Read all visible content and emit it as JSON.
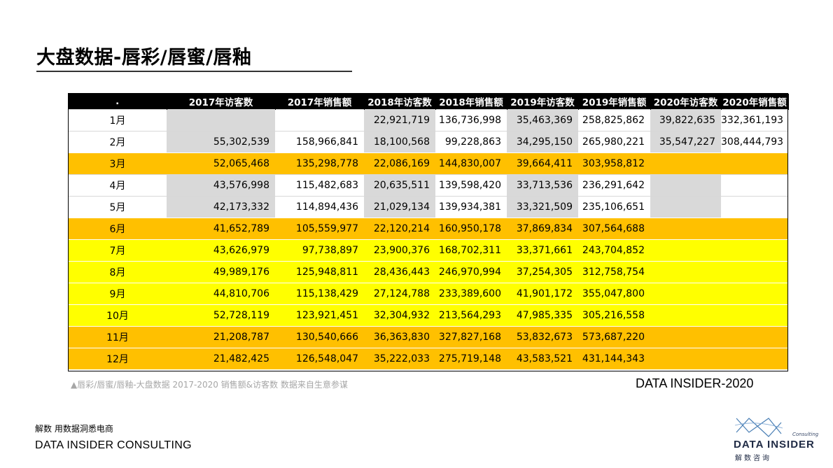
{
  "title": "大盘数据-唇彩/唇蜜/唇釉",
  "table": {
    "headers": [
      ".",
      "2017年访客数",
      "2017年销售额",
      "2018年访客数",
      "2018年销售额",
      "2019年访客数",
      "2019年销售额",
      "2020年访客数",
      "2020年销售额"
    ],
    "rows": [
      {
        "style": "white",
        "cells": [
          "1月",
          "",
          "",
          "22,921,719",
          "136,736,998",
          "35,463,369",
          "258,825,862",
          "39,822,635",
          "332,361,193"
        ]
      },
      {
        "style": "white",
        "cells": [
          "2月",
          "55,302,539",
          "158,966,841",
          "18,100,568",
          "99,228,863",
          "34,295,150",
          "265,980,221",
          "35,547,227",
          "308,444,793"
        ]
      },
      {
        "style": "orange",
        "cells": [
          "3月",
          "52,065,468",
          "135,298,778",
          "22,086,169",
          "144,830,007",
          "39,664,411",
          "303,958,812",
          "",
          ""
        ]
      },
      {
        "style": "white",
        "cells": [
          "4月",
          "43,576,998",
          "115,482,683",
          "20,635,511",
          "139,598,420",
          "33,713,536",
          "236,291,642",
          "",
          ""
        ]
      },
      {
        "style": "white",
        "cells": [
          "5月",
          "42,173,332",
          "114,894,436",
          "21,029,134",
          "139,934,381",
          "33,321,509",
          "235,106,651",
          "",
          ""
        ]
      },
      {
        "style": "orange",
        "cells": [
          "6月",
          "41,652,789",
          "105,559,977",
          "22,120,214",
          "160,950,178",
          "37,869,834",
          "307,564,688",
          "",
          ""
        ]
      },
      {
        "style": "yellow",
        "cells": [
          "7月",
          "43,626,979",
          "97,738,897",
          "23,900,376",
          "168,702,311",
          "33,371,661",
          "243,704,852",
          "",
          ""
        ]
      },
      {
        "style": "yellow",
        "cells": [
          "8月",
          "49,989,176",
          "125,948,811",
          "28,436,443",
          "246,970,994",
          "37,254,305",
          "312,758,754",
          "",
          ""
        ]
      },
      {
        "style": "yellow",
        "cells": [
          "9月",
          "44,810,706",
          "115,138,429",
          "27,124,788",
          "233,389,600",
          "41,901,172",
          "355,047,800",
          "",
          ""
        ]
      },
      {
        "style": "yellow",
        "cells": [
          "10月",
          "52,728,119",
          "123,921,451",
          "32,304,932",
          "213,564,293",
          "47,985,335",
          "305,216,558",
          "",
          ""
        ]
      },
      {
        "style": "orange",
        "cells": [
          "11月",
          "21,208,787",
          "130,540,666",
          "36,363,830",
          "327,827,168",
          "53,832,673",
          "573,687,220",
          "",
          ""
        ]
      },
      {
        "style": "orange",
        "cells": [
          "12月",
          "21,482,425",
          "126,548,047",
          "35,222,033",
          "275,719,148",
          "43,583,521",
          "431,144,343",
          "",
          ""
        ]
      }
    ]
  },
  "caption": "▲唇彩/唇蜜/唇釉-大盘数据 2017-2020 销售额&访客数 数据来自生意参谋",
  "brand_year": "DATA INSIDER-2020",
  "footer": {
    "tagline": "解数 用数据洞悉电商",
    "company": "DATA INSIDER CONSULTING"
  },
  "logo": {
    "name": "DATA INSIDER",
    "sub": "解数咨询",
    "consulting": "Consulting",
    "icon": "wave-logo-icon"
  },
  "colors": {
    "header_bg": "#000000",
    "orange_row": "#ffc000",
    "yellow_row": "#ffff00",
    "grey_cell": "#d9d9d9"
  }
}
